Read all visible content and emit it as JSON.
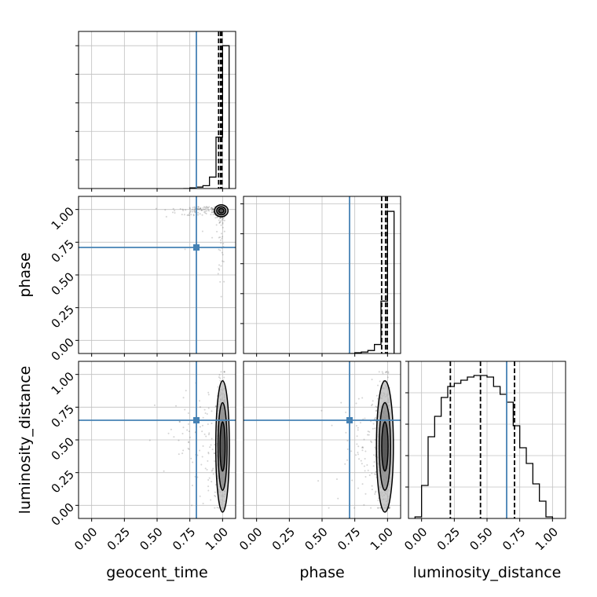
{
  "chart_data": {
    "type": "corner",
    "parameters": [
      "geocent_time",
      "phase",
      "luminosity_distance"
    ],
    "axis_labels": {
      "x": [
        "geocent_time",
        "phase",
        "luminosity_distance"
      ],
      "y": [
        "",
        "phase",
        "luminosity_distance"
      ]
    },
    "tick_labels": [
      "0.00",
      "0.25",
      "0.50",
      "0.75",
      "1.00"
    ],
    "ranges": [
      [
        -0.1,
        1.1
      ],
      [
        -0.1,
        1.1
      ],
      [
        -0.1,
        1.1
      ]
    ],
    "truths": [
      0.8,
      0.71,
      0.65
    ],
    "quantiles": [
      [
        0.97,
        0.985,
        0.995
      ],
      [
        0.955,
        0.985,
        0.998
      ],
      [
        0.22,
        0.45,
        0.71
      ]
    ],
    "grid": true,
    "colors": {
      "truth": "#4682b4",
      "hist": "#000000",
      "grid": "#c0c0c0",
      "samples": "#555555"
    },
    "histograms": [
      {
        "param": "geocent_time",
        "edges": [
          0.7,
          0.75,
          0.8,
          0.85,
          0.9,
          0.95,
          1.0,
          1.05
        ],
        "counts": [
          0,
          0.005,
          0.01,
          0.02,
          0.08,
          0.36,
          1.0
        ],
        "ymax": 1.1,
        "ytick_fracs": [
          0.2,
          0.4,
          0.6,
          0.8,
          1.0
        ]
      },
      {
        "param": "phase",
        "edges": [
          0.7,
          0.75,
          0.8,
          0.85,
          0.9,
          0.95,
          1.0,
          1.05
        ],
        "counts": [
          0,
          0.005,
          0.01,
          0.02,
          0.06,
          0.35,
          0.95
        ],
        "ymax": 1.05,
        "ytick_fracs": [
          0.2,
          0.4,
          0.6,
          0.8,
          1.0
        ]
      },
      {
        "param": "luminosity_distance",
        "edges": [
          -0.05,
          0.0,
          0.05,
          0.1,
          0.15,
          0.2,
          0.25,
          0.3,
          0.35,
          0.4,
          0.45,
          0.5,
          0.55,
          0.6,
          0.65,
          0.7,
          0.75,
          0.8,
          0.85,
          0.9,
          0.95,
          1.0
        ],
        "counts": [
          0.01,
          0.21,
          0.52,
          0.65,
          0.77,
          0.84,
          0.86,
          0.88,
          0.9,
          0.91,
          0.91,
          0.9,
          0.84,
          0.79,
          0.74,
          0.59,
          0.45,
          0.35,
          0.22,
          0.11,
          0.01
        ],
        "ymax": 1.0,
        "ytick_fracs": [
          0.2,
          0.4,
          0.6,
          0.8,
          1.0
        ]
      }
    ],
    "scatter_panels": [
      {
        "x": "geocent_time",
        "y": "phase",
        "x_mean": 0.99,
        "x_sd": 0.02,
        "y_mean": 0.99,
        "y_sd": 0.02,
        "spread_note": "samples concentrated near (1.0, 1.0) with sparse tail toward x=0.5"
      },
      {
        "x": "geocent_time",
        "y": "luminosity_distance",
        "x_mean": 1.0,
        "x_sd": 0.02,
        "y_mean": 0.45,
        "y_sd": 0.22
      },
      {
        "x": "phase",
        "y": "luminosity_distance",
        "x_mean": 0.98,
        "x_sd": 0.03,
        "y_mean": 0.45,
        "y_sd": 0.22
      }
    ]
  }
}
